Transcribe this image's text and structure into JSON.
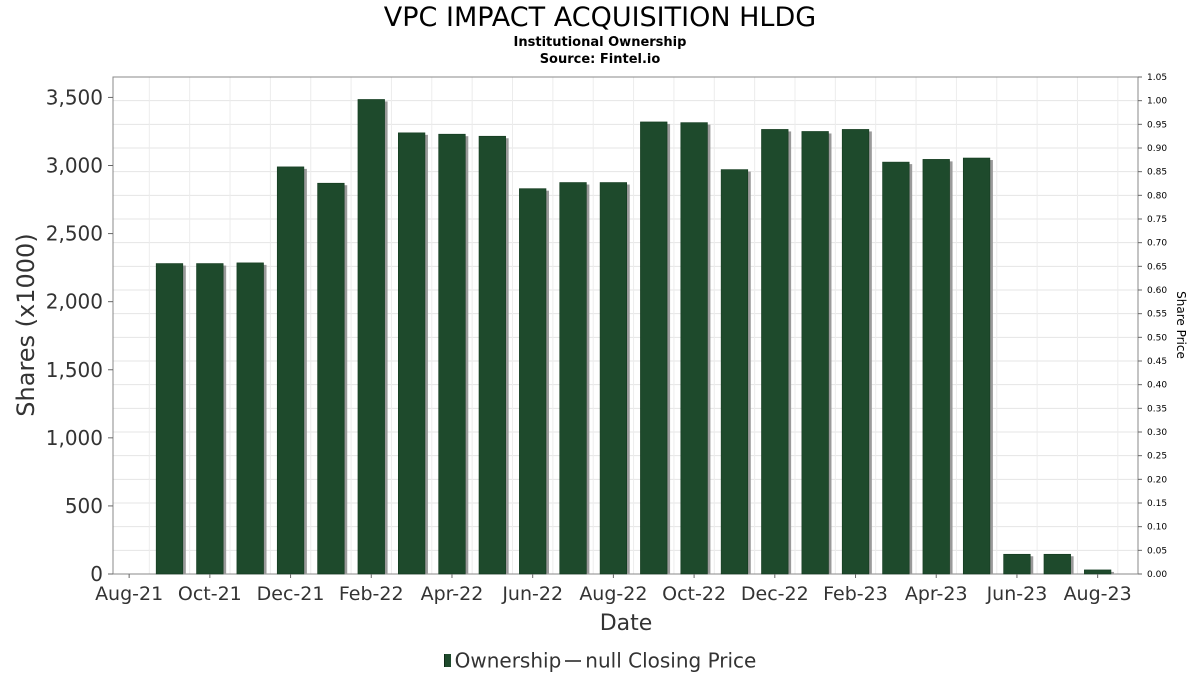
{
  "chart_data": {
    "type": "bar",
    "title": "VPC IMPACT ACQUISITION HLDG",
    "subtitle": "Institutional Ownership",
    "source": "Source: Fintel.io",
    "xlabel": "Date",
    "ylabel": "Shares (x1000)",
    "y2label": "Share Price",
    "ylim": [
      0,
      3650
    ],
    "y2lim": [
      0,
      1.05
    ],
    "yticks": [
      0,
      500,
      1000,
      1500,
      2000,
      2500,
      3000,
      3500
    ],
    "yticklabels": [
      "0",
      "500",
      "1,000",
      "1,500",
      "2,000",
      "2,500",
      "3,000",
      "3,500"
    ],
    "y2ticks": [
      0.0,
      0.05,
      0.1,
      0.15,
      0.2,
      0.25,
      0.3,
      0.35,
      0.4,
      0.45,
      0.5,
      0.55,
      0.6,
      0.65,
      0.7,
      0.75,
      0.8,
      0.85,
      0.9,
      0.95,
      1.0,
      1.05
    ],
    "y2ticklabels": [
      "0.00",
      "0.05",
      "0.10",
      "0.15",
      "0.20",
      "0.25",
      "0.30",
      "0.35",
      "0.40",
      "0.45",
      "0.50",
      "0.55",
      "0.60",
      "0.65",
      "0.70",
      "0.75",
      "0.80",
      "0.85",
      "0.90",
      "0.95",
      "1.00",
      "1.05"
    ],
    "xticklabels": [
      "Aug-21",
      "Oct-21",
      "Dec-21",
      "Feb-22",
      "Apr-22",
      "Jun-22",
      "Aug-22",
      "Oct-22",
      "Dec-22",
      "Feb-23",
      "Apr-23",
      "Jun-23",
      "Aug-23"
    ],
    "categories": [
      "Sep-21",
      "Oct-21",
      "Nov-21",
      "Dec-21",
      "Jan-22",
      "Feb-22",
      "Mar-22",
      "Apr-22",
      "May-22",
      "Jun-22",
      "Jul-22",
      "Aug-22",
      "Sep-22",
      "Oct-22",
      "Nov-22",
      "Dec-22",
      "Jan-23",
      "Feb-23",
      "Mar-23",
      "Apr-23",
      "May-23",
      "Jun-23",
      "Jul-23",
      "Aug-23"
    ],
    "series": [
      {
        "name": "Ownership",
        "color": "#1e4a2c",
        "values": [
          2280,
          2280,
          2285,
          2990,
          2870,
          3485,
          3240,
          3230,
          3215,
          2830,
          2875,
          2875,
          3320,
          3315,
          2970,
          3265,
          3250,
          3265,
          3025,
          3045,
          3055,
          145,
          145,
          30
        ]
      }
    ],
    "legend": [
      {
        "label": "Ownership",
        "kind": "bar"
      },
      {
        "label": "null Closing Price",
        "kind": "line"
      }
    ],
    "legend_position": "bottom",
    "grid": true
  }
}
